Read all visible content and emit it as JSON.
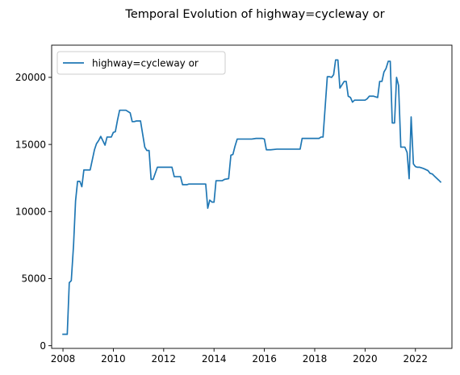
{
  "chart_data": {
    "type": "line",
    "title": "Temporal Evolution of highway=cycleway or",
    "xlabel": "",
    "ylabel": "",
    "xlim": [
      2007.55,
      2023.45
    ],
    "ylim": [
      -200,
      22400
    ],
    "x_ticks": [
      2008,
      2010,
      2012,
      2014,
      2016,
      2018,
      2020,
      2022
    ],
    "y_ticks": [
      0,
      5000,
      10000,
      15000,
      20000
    ],
    "grid": false,
    "legend": "top-left",
    "series": [
      {
        "name": "highway=cycleway or",
        "color": "#1f77b4",
        "x": [
          2008.0,
          2008.17,
          2008.25,
          2008.33,
          2008.42,
          2008.5,
          2008.58,
          2008.67,
          2008.75,
          2008.83,
          2008.92,
          2009.0,
          2009.08,
          2009.25,
          2009.33,
          2009.42,
          2009.5,
          2009.67,
          2009.75,
          2009.83,
          2009.92,
          2010.0,
          2010.08,
          2010.17,
          2010.25,
          2010.33,
          2010.42,
          2010.5,
          2010.67,
          2010.75,
          2010.83,
          2010.92,
          2011.0,
          2011.08,
          2011.25,
          2011.33,
          2011.42,
          2011.5,
          2011.58,
          2011.75,
          2011.83,
          2011.92,
          2012.33,
          2012.42,
          2012.5,
          2012.67,
          2012.75,
          2012.92,
          2013.0,
          2013.67,
          2013.75,
          2013.83,
          2013.92,
          2014.0,
          2014.08,
          2014.33,
          2014.42,
          2014.58,
          2014.67,
          2014.75,
          2014.83,
          2014.92,
          2015.0,
          2015.17,
          2015.5,
          2015.67,
          2015.92,
          2016.0,
          2016.08,
          2016.25,
          2016.5,
          2016.75,
          2017.0,
          2017.25,
          2017.33,
          2017.42,
          2017.5,
          2017.75,
          2018.0,
          2018.08,
          2018.17,
          2018.25,
          2018.33,
          2018.5,
          2018.58,
          2018.67,
          2018.75,
          2018.83,
          2018.92,
          2019.0,
          2019.17,
          2019.25,
          2019.33,
          2019.42,
          2019.5,
          2019.58,
          2019.75,
          2020.0,
          2020.08,
          2020.17,
          2020.25,
          2020.33,
          2020.5,
          2020.58,
          2020.67,
          2020.75,
          2020.83,
          2020.92,
          2021.0,
          2021.08,
          2021.17,
          2021.25,
          2021.33,
          2021.42,
          2021.5,
          2021.58,
          2021.67,
          2021.75,
          2021.83,
          2021.92,
          2022.0,
          2022.08,
          2022.17,
          2022.25,
          2022.33,
          2022.5,
          2022.58,
          2022.67,
          2022.75,
          2022.92,
          2023.0
        ],
        "y": [
          850,
          850,
          4700,
          4850,
          7500,
          10800,
          12250,
          12250,
          11850,
          13100,
          13100,
          13100,
          13100,
          14600,
          15050,
          15300,
          15600,
          14950,
          15550,
          15550,
          15550,
          15900,
          15950,
          16850,
          17550,
          17550,
          17550,
          17550,
          17350,
          16700,
          16700,
          16750,
          16750,
          16750,
          14800,
          14550,
          14550,
          12400,
          12400,
          13300,
          13300,
          13300,
          13300,
          12600,
          12600,
          12600,
          12000,
          12000,
          12050,
          12050,
          10250,
          10850,
          10700,
          10700,
          12300,
          12300,
          12400,
          12450,
          14200,
          14250,
          14850,
          15400,
          15400,
          15400,
          15400,
          15450,
          15450,
          15400,
          14600,
          14600,
          14650,
          14650,
          14650,
          14650,
          14650,
          14650,
          15450,
          15450,
          15450,
          15450,
          15450,
          15550,
          15550,
          20050,
          20050,
          20000,
          20200,
          21300,
          21300,
          19200,
          19700,
          19700,
          18600,
          18500,
          18150,
          18300,
          18300,
          18300,
          18400,
          18600,
          18600,
          18600,
          18500,
          19700,
          19700,
          20400,
          20650,
          21200,
          21200,
          16600,
          16600,
          20000,
          19400,
          14800,
          14800,
          14800,
          14400,
          12450,
          17050,
          13550,
          13350,
          13300,
          13300,
          13250,
          13200,
          13050,
          12850,
          12800,
          12650,
          12350,
          12200
        ]
      }
    ]
  }
}
